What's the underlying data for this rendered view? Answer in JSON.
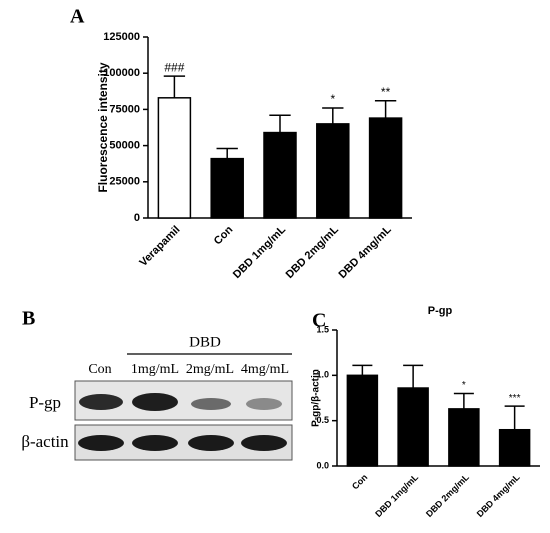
{
  "chart_data": [
    {
      "type": "bar",
      "panel": "A",
      "ylabel": "Fluorescence intensity",
      "categories": [
        "Verapamil",
        "Con",
        "DBD 1mg/mL",
        "DBD 2mg/mL",
        "DBD 4mg/mL"
      ],
      "values": [
        83000,
        41000,
        59000,
        65000,
        69000
      ],
      "errors": [
        15000,
        7000,
        12000,
        11000,
        12000
      ],
      "annotations": [
        "###",
        null,
        null,
        "*",
        "**"
      ],
      "colors": [
        "#ffffff",
        "#000000",
        "#000000",
        "#000000",
        "#000000"
      ],
      "ylim": [
        0,
        125000
      ],
      "yticks": [
        0,
        25000,
        50000,
        75000,
        100000,
        125000
      ]
    },
    {
      "type": "bar",
      "panel": "C",
      "title": "P-gp",
      "ylabel": "P-gp/β-actin",
      "categories": [
        "Con",
        "DBD 1mg/mL",
        "DBD 2mg/mL",
        "DBD 4mg/mL"
      ],
      "values": [
        1.0,
        0.86,
        0.63,
        0.4
      ],
      "errors": [
        0.11,
        0.25,
        0.17,
        0.26
      ],
      "annotations": [
        null,
        null,
        "*",
        "***"
      ],
      "colors": [
        "#000000",
        "#000000",
        "#000000",
        "#000000"
      ],
      "ylim": [
        0,
        1.5
      ],
      "yticks": [
        {
          "value": 0,
          "label": "0.0"
        },
        {
          "value": 0.5,
          "label": "0.5"
        },
        {
          "value": 1.0,
          "label": "1.0"
        },
        {
          "value": 1.5,
          "label": "1.5"
        }
      ]
    }
  ],
  "blot": {
    "panel": "B",
    "group": "DBD",
    "lanes": [
      "Con",
      "1mg/mL",
      "2mg/mL",
      "4mg/mL"
    ],
    "rows": [
      "P-gp",
      "β-actin"
    ]
  }
}
